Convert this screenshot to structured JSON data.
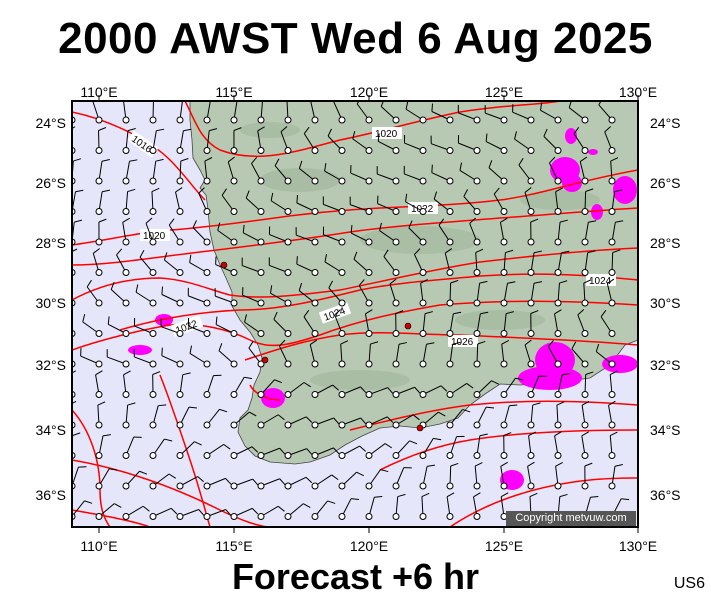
{
  "title": "2000 AWST Wed 6 Aug 2025",
  "footer": "Forecast +6 hr",
  "region_code": "US6",
  "copyright": "Copyright metvuw.com",
  "map": {
    "lon_range": [
      109,
      130
    ],
    "lat_range": [
      -37,
      -23.5
    ],
    "lon_ticks": [
      "110°E",
      "115°E",
      "120°E",
      "125°E",
      "130°E"
    ],
    "lat_ticks": [
      "24°S",
      "26°S",
      "28°S",
      "30°S",
      "32°S",
      "34°S",
      "36°S"
    ],
    "isobar_labels": [
      "1016",
      "1020",
      "1020",
      "1022",
      "1022",
      "1024",
      "1024",
      "1026"
    ],
    "colors": {
      "ocean": "#e6e6fa",
      "land": "#b7c9b2",
      "isobar": "#ff0000",
      "rain": "#ff00ff",
      "wind": "#000000"
    },
    "wind_barbs": "wind barb grid shown in knots (station circles with barbs)"
  }
}
